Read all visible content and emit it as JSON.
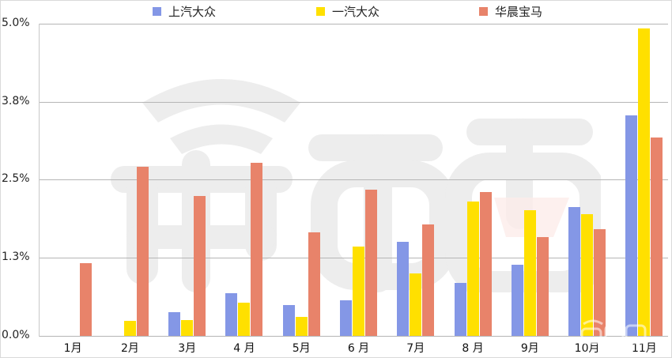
{
  "chart_data": {
    "type": "bar",
    "title": "",
    "xlabel": "",
    "ylabel": "",
    "ylim": [
      0,
      5.0
    ],
    "grid": true,
    "legend_position": "top",
    "y_tick_labels": [
      "5.0%",
      "3.8%",
      "2.5%",
      "1.3%",
      "0.0%"
    ],
    "y_tick_values": [
      5.0,
      3.75,
      2.5,
      1.25,
      0.0
    ],
    "categories": [
      "1月",
      "2月",
      "3月",
      "4 月",
      "5月",
      "6 月",
      "7月",
      "8 月",
      "9月",
      "10月",
      "11月"
    ],
    "series": [
      {
        "name": "上汽大众",
        "color": "#8497e6",
        "values": [
          0,
          0,
          0.38,
          0.68,
          0.49,
          0.57,
          1.51,
          0.85,
          1.14,
          2.06,
          3.53
        ]
      },
      {
        "name": "一汽大众",
        "color": "#ffe000",
        "values": [
          0,
          0.24,
          0.25,
          0.53,
          0.3,
          1.43,
          1.0,
          2.15,
          2.01,
          1.95,
          4.92
        ]
      },
      {
        "name": "华晨宝马",
        "color": "#e8836a",
        "values": [
          1.16,
          2.71,
          2.24,
          2.77,
          1.66,
          2.34,
          1.78,
          2.3,
          1.58,
          1.71,
          3.18
        ]
      }
    ]
  },
  "legend": {
    "items": [
      {
        "label": "上汽大众",
        "color": "#8497e6"
      },
      {
        "label": "一汽大众",
        "color": "#ffe000"
      },
      {
        "label": "华晨宝马",
        "color": "#e8836a"
      }
    ]
  },
  "watermark": {
    "text": "车东西"
  }
}
